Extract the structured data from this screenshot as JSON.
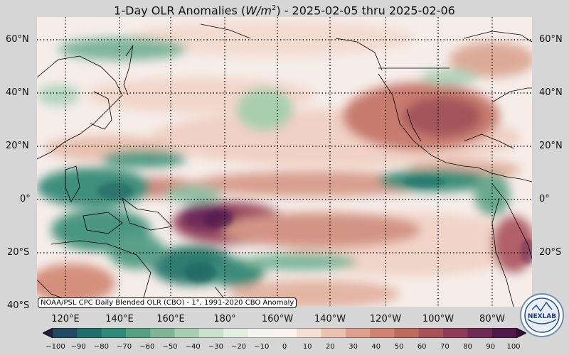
{
  "title": {
    "main": "1-Day OLR Anomalies (",
    "unit_base": "W/m",
    "unit_exp": "2",
    "tail": ") - 2025-02-05 thru 2025-02-06"
  },
  "map": {
    "lat_labels": [
      "60°N",
      "40°N",
      "20°N",
      "0°",
      "20°S",
      "40°S"
    ],
    "lon_labels": [
      "120°E",
      "140°E",
      "160°E",
      "180°",
      "160°W",
      "140°W",
      "120°W",
      "100°W",
      "80°W"
    ],
    "credit": "NOAA/PSL CPC Daily Blended OLR (CBO) - 1°, 1991-2020 CBO Anomaly",
    "projection": "equirectangular",
    "lon_range": [
      107,
      292
    ],
    "lat_range": [
      -40,
      68
    ]
  },
  "colorbar": {
    "ticks": [
      "−100",
      "−90",
      "−80",
      "−70",
      "−60",
      "−50",
      "−40",
      "−30",
      "−20",
      "−10",
      "0",
      "10",
      "20",
      "30",
      "40",
      "50",
      "60",
      "70",
      "80",
      "90",
      "100"
    ],
    "range": [
      -100,
      100
    ],
    "colors": [
      "#1e1e3c",
      "#1f4a60",
      "#1f6e6a",
      "#2e8a76",
      "#559f83",
      "#7fb596",
      "#a8cdb1",
      "#c9e0cd",
      "#e3eee3",
      "#f4f4f0",
      "#fbf3ef",
      "#f5dfd6",
      "#ebc2b2",
      "#deA08f",
      "#cf8472",
      "#bd6a5f",
      "#a65258",
      "#8d3d58",
      "#6f2a56",
      "#51194a",
      "#351038"
    ]
  },
  "logo": {
    "text": "NEXLAB"
  }
}
